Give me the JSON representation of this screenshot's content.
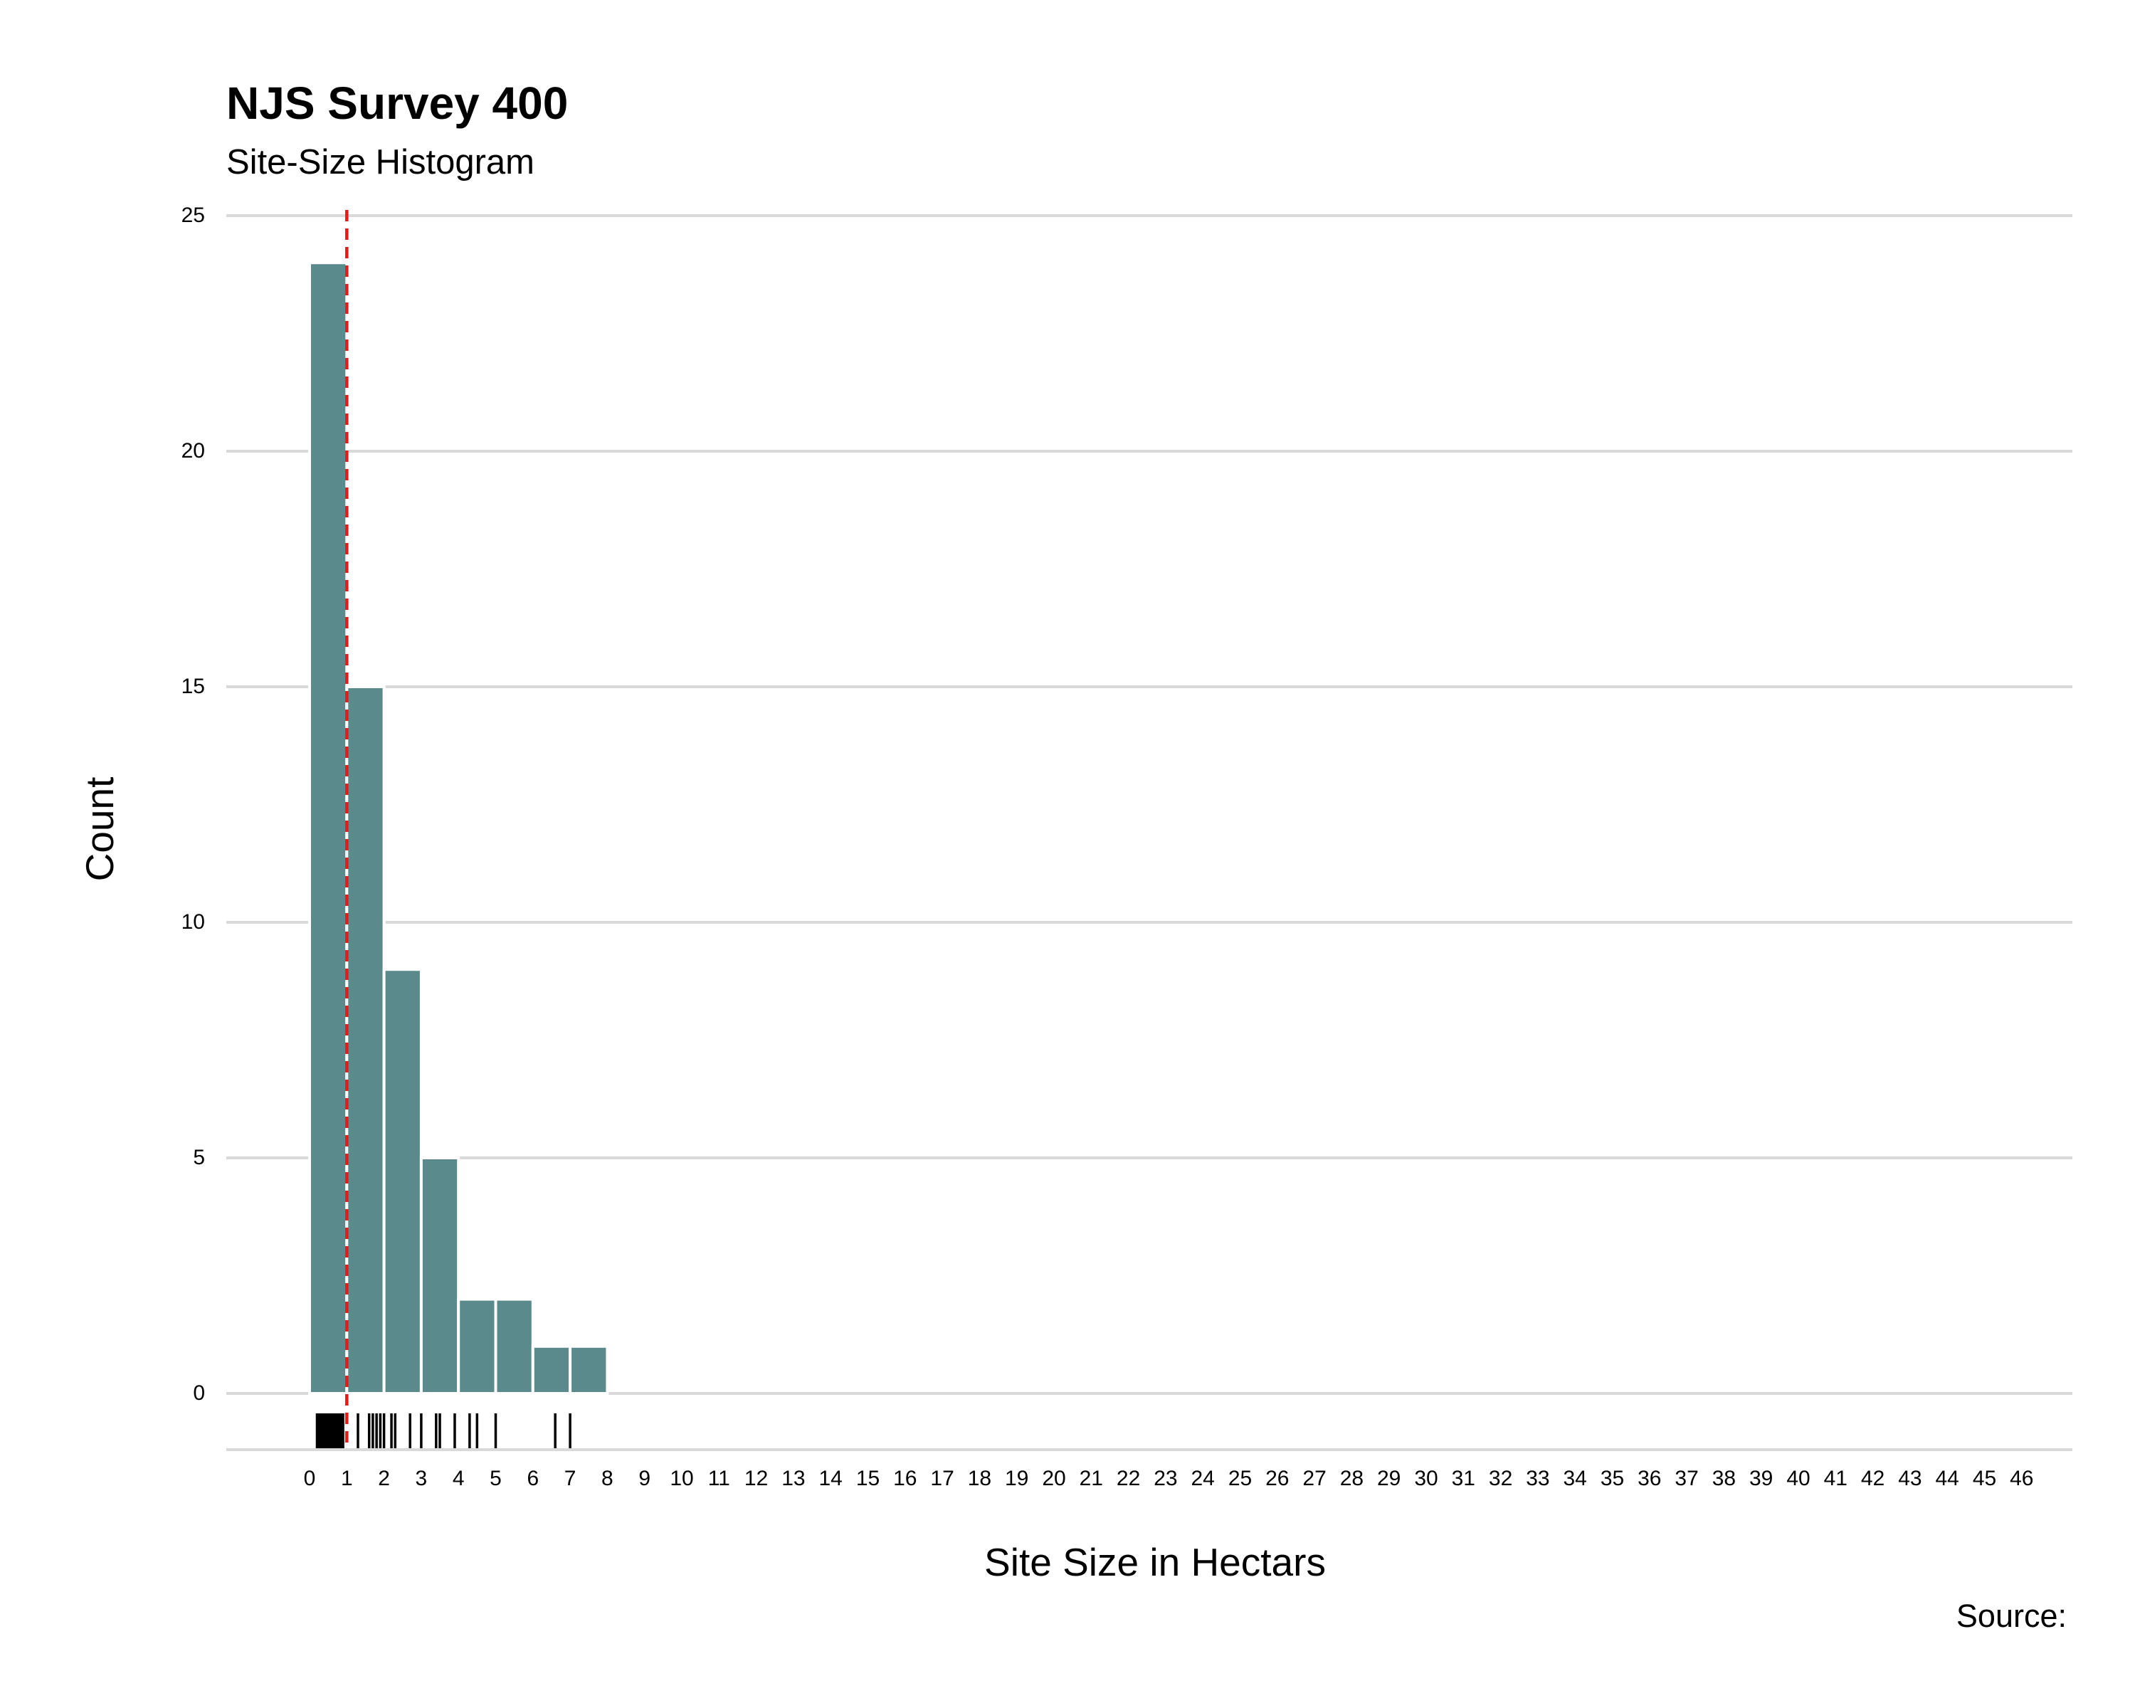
{
  "chart_data": {
    "type": "bar",
    "title": "NJS Survey 400",
    "subtitle": "Site-Size Histogram",
    "xlabel": "Site Size in Hectars",
    "ylabel": "Count",
    "caption": "Source:",
    "bin_width": 1,
    "bin_start": 0,
    "values": [
      24,
      15,
      9,
      5,
      2,
      2,
      1,
      1
    ],
    "xlim": [
      -1.5,
      48
    ],
    "ylim": [
      0,
      25
    ],
    "yticks": [
      0,
      5,
      10,
      15,
      20,
      25
    ],
    "xticks": [
      0,
      1,
      2,
      3,
      4,
      5,
      6,
      7,
      8,
      9,
      10,
      11,
      12,
      13,
      14,
      15,
      16,
      17,
      18,
      19,
      20,
      21,
      22,
      23,
      24,
      25,
      26,
      27,
      28,
      29,
      30,
      31,
      32,
      33,
      34,
      35,
      36,
      37,
      38,
      39,
      40,
      41,
      42,
      43,
      44,
      45,
      46
    ],
    "reference_line": {
      "x": 1.0,
      "style": "dashed",
      "color": "#e41a1c"
    },
    "rug": [
      0.2,
      0.22,
      0.25,
      0.28,
      0.3,
      0.33,
      0.36,
      0.4,
      0.42,
      0.45,
      0.48,
      0.5,
      0.53,
      0.56,
      0.6,
      0.63,
      0.66,
      0.7,
      0.75,
      0.8,
      0.85,
      0.9,
      1.3,
      1.6,
      1.7,
      1.8,
      1.9,
      2.0,
      2.2,
      2.3,
      2.7,
      3.0,
      3.4,
      3.5,
      3.9,
      4.3,
      4.5,
      5.0,
      6.6,
      7.0
    ],
    "grid": true,
    "colors": {
      "bar": "#5a8a8c",
      "grid": "#d9d9d9",
      "rug": "#000000",
      "reference": "#e41a1c"
    }
  }
}
